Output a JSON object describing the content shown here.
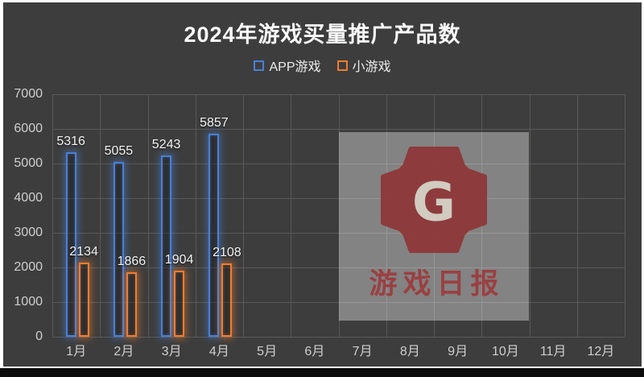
{
  "frame": {
    "background": "#ffffff",
    "chart_background": "#3d3d3d",
    "bottom_strip_color": "#0c0c0c"
  },
  "chart_data": {
    "type": "bar",
    "title": "2024年游戏买量推广产品数",
    "categories": [
      "1月",
      "2月",
      "3月",
      "4月",
      "5月",
      "6月",
      "7月",
      "8月",
      "9月",
      "10月",
      "11月",
      "12月"
    ],
    "series": [
      {
        "name": "APP游戏",
        "color": "#4a7fd6",
        "values": [
          5316,
          5055,
          5243,
          5857,
          null,
          null,
          null,
          null,
          null,
          null,
          null,
          null
        ]
      },
      {
        "name": "小游戏",
        "color": "#ed7d31",
        "values": [
          2134,
          1866,
          1904,
          2108,
          null,
          null,
          null,
          null,
          null,
          null,
          null,
          null
        ]
      }
    ],
    "ylim": [
      0,
      7000
    ],
    "ytick_step": 1000,
    "yticks": [
      7000,
      6000,
      5000,
      4000,
      3000,
      2000,
      1000,
      0
    ],
    "grid": true,
    "gridline_color": "#59595b",
    "legend_position": "top",
    "title_color": "#fafafa",
    "axis_label_color": "#cfcfcf",
    "value_label_color": "#f2f2f2"
  },
  "watermark": {
    "logo_letter": "G",
    "text": "游戏日报",
    "box_color": "rgba(255,255,255,0.36)",
    "badge_red": "#8e3538",
    "ring_yellow": "#b49a33",
    "letter_color": "#d8d2c6",
    "text_color": "#9c3d3f"
  }
}
